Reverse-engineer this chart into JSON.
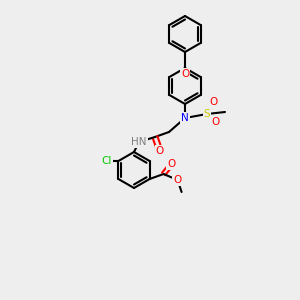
{
  "background_color": "#eeeeee",
  "bond_color": "#000000",
  "bond_lw": 1.5,
  "atom_colors": {
    "O": "#ff0000",
    "N": "#0000ff",
    "S": "#cccc00",
    "Cl": "#00cc00",
    "H_on_N": "#808080",
    "C": "#000000"
  },
  "font_size": 7.5
}
